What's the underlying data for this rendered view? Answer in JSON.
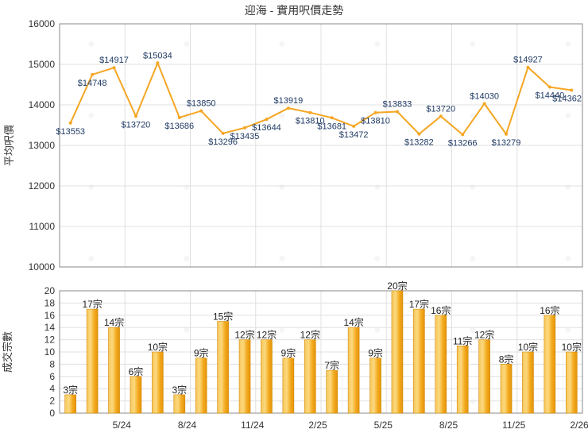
{
  "chart_data": [
    {
      "type": "line",
      "title": "迎海 - 實用呎價走勢",
      "ylabel": "平均呎價",
      "ylim": [
        10000,
        16000
      ],
      "yticks": [
        10000,
        11000,
        12000,
        13000,
        14000,
        15000,
        16000
      ],
      "grid": true,
      "series": [
        {
          "color": "#f5a623",
          "values": [
            13553,
            14748,
            14917,
            13720,
            15034,
            13686,
            13850,
            13296,
            13435,
            13644,
            13919,
            13810,
            13681,
            13472,
            13810,
            13833,
            13282,
            13720,
            13266,
            14030,
            13279,
            14927,
            14440,
            14362
          ],
          "labels": [
            "$13553",
            "$14748",
            "$14917",
            "$13720",
            "$15034",
            "$13686",
            "$13850",
            "$13296",
            "$13435",
            "$13644",
            "$13919",
            "$13810",
            "$13681",
            "$13472",
            "$13810",
            "$13833",
            "$13282",
            "$13720",
            "$13266",
            "$14030",
            "$13279",
            "$14927",
            "$14440",
            "$14362"
          ]
        }
      ]
    },
    {
      "type": "bar",
      "ylabel": "成交宗數",
      "ylim": [
        0,
        20
      ],
      "yticks": [
        0,
        2,
        4,
        6,
        8,
        10,
        12,
        14,
        16,
        18,
        20
      ],
      "xticks": [
        "5/24",
        "8/24",
        "11/24",
        "2/25",
        "5/25",
        "8/25",
        "11/25",
        "2/26"
      ],
      "grid": true,
      "bar_color": "#f5b32e",
      "values": [
        3,
        17,
        14,
        6,
        10,
        3,
        9,
        15,
        12,
        12,
        9,
        12,
        7,
        14,
        9,
        20,
        17,
        16,
        11,
        12,
        8,
        10,
        16,
        10
      ],
      "labels": [
        "3宗",
        "17宗",
        "14宗",
        "6宗",
        "10宗",
        "3宗",
        "9宗",
        "15宗",
        "12宗",
        "12宗",
        "9宗",
        "12宗",
        "7宗",
        "14宗",
        "9宗",
        "20宗",
        "17宗",
        "16宗",
        "11宗",
        "12宗",
        "8宗",
        "10宗",
        "16宗",
        "10宗"
      ]
    }
  ]
}
